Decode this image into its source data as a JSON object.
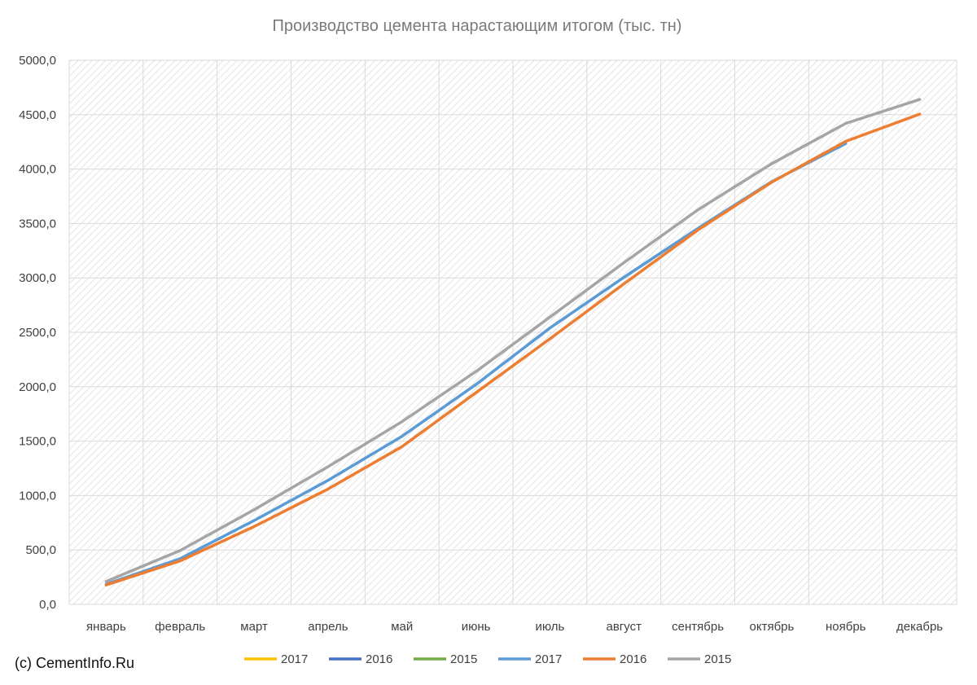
{
  "chart_data": {
    "type": "line",
    "title": "Производство цемента нарастающим итогом (тыс. тн)",
    "xlabel": "",
    "ylabel": "",
    "categories": [
      "январь",
      "февраль",
      "март",
      "апрель",
      "май",
      "июнь",
      "июль",
      "август",
      "сентябрь",
      "октябрь",
      "ноябрь",
      "декабрь"
    ],
    "ylim": [
      0,
      5000
    ],
    "yticks": [
      0,
      500,
      1000,
      1500,
      2000,
      2500,
      3000,
      3500,
      4000,
      4500,
      5000
    ],
    "ytick_labels": [
      "0,0",
      "500,0",
      "1000,0",
      "1500,0",
      "2000,0",
      "2500,0",
      "3000,0",
      "3500,0",
      "4000,0",
      "4500,0",
      "5000,0"
    ],
    "grid": true,
    "legend_position": "bottom",
    "series": [
      {
        "name": "2017",
        "color": "#ffc000",
        "values": [
          185,
          420,
          770,
          1140,
          1545,
          2020,
          2540,
          3005,
          3455,
          3885,
          4235,
          null
        ],
        "visible_line": false
      },
      {
        "name": "2016",
        "color": "#4472c4",
        "values": [
          178,
          400,
          715,
          1060,
          1450,
          1945,
          2440,
          2945,
          3440,
          3880,
          4255,
          4505
        ],
        "visible_line": false
      },
      {
        "name": "2015",
        "color": "#70ad47",
        "values": [
          210,
          495,
          870,
          1265,
          1680,
          2140,
          2640,
          3140,
          3625,
          4050,
          4420,
          4640
        ],
        "visible_line": false
      },
      {
        "name": "2017",
        "color": "#5b9bd5",
        "values": [
          185,
          420,
          770,
          1140,
          1545,
          2020,
          2540,
          3005,
          3455,
          3885,
          4235,
          null
        ],
        "visible_line": true
      },
      {
        "name": "2016",
        "color": "#ed7d31",
        "values": [
          178,
          400,
          715,
          1060,
          1450,
          1945,
          2440,
          2945,
          3440,
          3880,
          4255,
          4505
        ],
        "visible_line": true
      },
      {
        "name": "2015",
        "color": "#a5a5a5",
        "values": [
          210,
          495,
          870,
          1265,
          1680,
          2140,
          2640,
          3140,
          3625,
          4050,
          4420,
          4640
        ],
        "visible_line": true
      }
    ]
  },
  "credit": "(c) CementInfo.Ru"
}
